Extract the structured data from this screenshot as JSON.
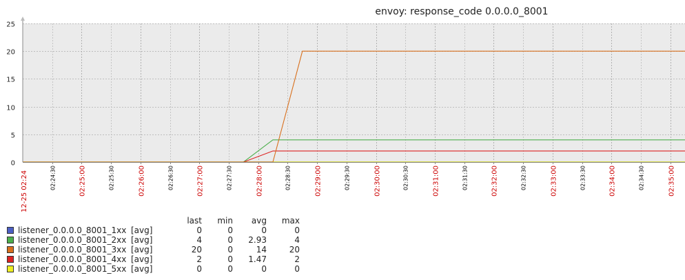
{
  "chart_data": {
    "type": "line",
    "title": "envoy: response_code 0.0.0.0_8001",
    "ylim": [
      0,
      25
    ],
    "yticks": [
      0,
      5,
      10,
      15,
      20,
      25
    ],
    "grid": true,
    "x_range": [
      "02:24:00",
      "02:35:15"
    ],
    "x_date_label": "12-25 02:24",
    "x_minor_ticks": [
      "02:24:30",
      "02:25:30",
      "02:26:30",
      "02:27:30",
      "02:28:30",
      "02:29:30",
      "02:30:30",
      "02:31:30",
      "02:32:30",
      "02:33:30",
      "02:34:30"
    ],
    "x_major_ticks": [
      "02:25:00",
      "02:26:00",
      "02:27:00",
      "02:28:00",
      "02:29:00",
      "02:30:00",
      "02:31:00",
      "02:32:00",
      "02:33:00",
      "02:34:00",
      "02:35:00"
    ],
    "series": [
      {
        "name": "listener_0.0.0.0_8001_1xx",
        "color": "#4c5fc4",
        "points": [
          [
            "02:24:00",
            0
          ],
          [
            "02:35:15",
            0
          ]
        ]
      },
      {
        "name": "listener_0.0.0.0_8001_2xx",
        "color": "#4caf4c",
        "points": [
          [
            "02:24:00",
            0
          ],
          [
            "02:27:45",
            0
          ],
          [
            "02:28:15",
            4
          ],
          [
            "02:35:15",
            4
          ]
        ]
      },
      {
        "name": "listener_0.0.0.0_8001_3xx",
        "color": "#d86f1c",
        "points": [
          [
            "02:24:00",
            0
          ],
          [
            "02:28:15",
            0
          ],
          [
            "02:28:45",
            20
          ],
          [
            "02:35:15",
            20
          ]
        ]
      },
      {
        "name": "listener_0.0.0.0_8001_4xx",
        "color": "#dd2222",
        "points": [
          [
            "02:24:00",
            0
          ],
          [
            "02:27:45",
            0
          ],
          [
            "02:28:15",
            2
          ],
          [
            "02:35:15",
            2
          ]
        ]
      },
      {
        "name": "listener_0.0.0.0_8001_5xx",
        "color": "#eeee22",
        "points": [
          [
            "02:24:00",
            0
          ],
          [
            "02:35:15",
            0
          ]
        ]
      }
    ]
  },
  "legend": {
    "headers": {
      "last": "last",
      "min": "min",
      "avg": "avg",
      "max": "max"
    },
    "rows": [
      {
        "name": "listener_0.0.0.0_8001_1xx",
        "fn": "[avg]",
        "last": "0",
        "min": "0",
        "avg": "0",
        "max": "0",
        "color": "#4c5fc4"
      },
      {
        "name": "listener_0.0.0.0_8001_2xx",
        "fn": "[avg]",
        "last": "4",
        "min": "0",
        "avg": "2.93",
        "max": "4",
        "color": "#4caf4c"
      },
      {
        "name": "listener_0.0.0.0_8001_3xx",
        "fn": "[avg]",
        "last": "20",
        "min": "0",
        "avg": "14",
        "max": "20",
        "color": "#d86f1c"
      },
      {
        "name": "listener_0.0.0.0_8001_4xx",
        "fn": "[avg]",
        "last": "2",
        "min": "0",
        "avg": "1.47",
        "max": "2",
        "color": "#dd2222"
      },
      {
        "name": "listener_0.0.0.0_8001_5xx",
        "fn": "[avg]",
        "last": "0",
        "min": "0",
        "avg": "0",
        "max": "0",
        "color": "#eeee22"
      }
    ]
  }
}
